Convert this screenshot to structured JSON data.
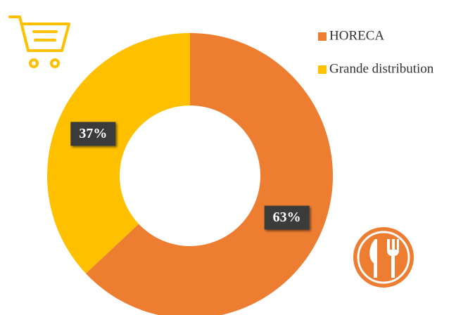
{
  "chart_data": {
    "type": "donut",
    "categories": [
      "HORECA",
      "Grande distribution"
    ],
    "values": [
      63,
      37
    ],
    "value_labels": [
      "63%",
      "37%"
    ],
    "colors": [
      "#ED7D31",
      "#FFC000"
    ],
    "legend": "top-right"
  }
}
